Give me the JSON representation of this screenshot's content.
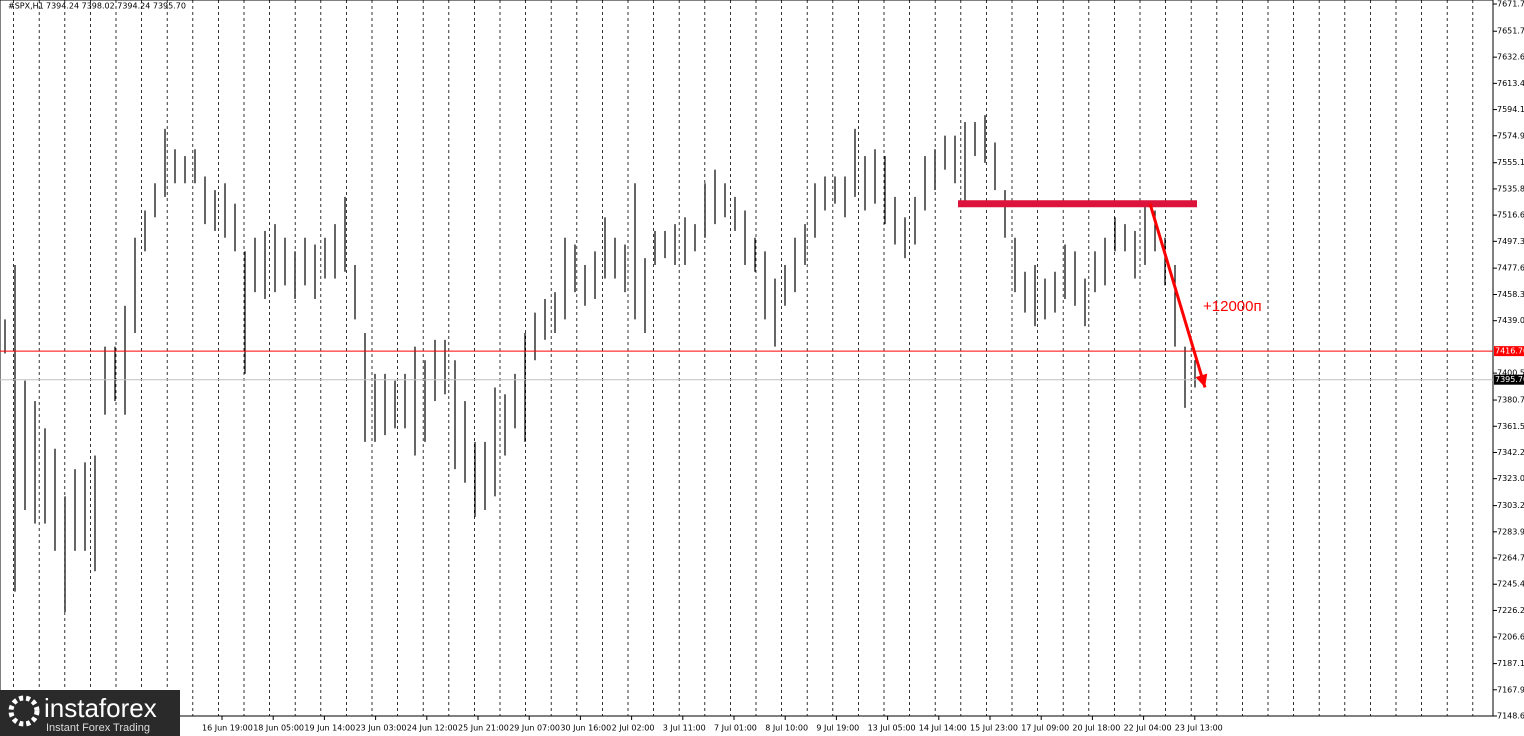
{
  "chart_data": {
    "type": "range-bar",
    "header": {
      "symbol": "#SPX,H1",
      "ohlc": "7394.24 7398.02 7394.24 7395.70"
    },
    "ylim": [
      7148.65,
      7671.7
    ],
    "yticks": [
      {
        "value": 7148.65,
        "label": "7148.65"
      },
      {
        "value": 7167.9,
        "label": "7167.90"
      },
      {
        "value": 7187.15,
        "label": "7187.15"
      },
      {
        "value": 7206.65,
        "label": "7206.65"
      },
      {
        "value": 7226.2,
        "label": "7226.20"
      },
      {
        "value": 7245.45,
        "label": "7245.45"
      },
      {
        "value": 7264.7,
        "label": "7264.70"
      },
      {
        "value": 7283.95,
        "label": "7283.95"
      },
      {
        "value": 7303.2,
        "label": "7303.20"
      },
      {
        "value": 7323,
        "label": "7323.00"
      },
      {
        "value": 7342.25,
        "label": "7342.25"
      },
      {
        "value": 7361.5,
        "label": "7361.50"
      },
      {
        "value": 7380.75,
        "label": "7380.75"
      },
      {
        "value": 7400.55,
        "label": "7400.55"
      },
      {
        "value": 7439.05,
        "label": "7439.05"
      },
      {
        "value": 7458.3,
        "label": "7458.30"
      },
      {
        "value": 7477.65,
        "label": "7477.65"
      },
      {
        "value": 7497.35,
        "label": "7497.35"
      },
      {
        "value": 7516.6,
        "label": "7516.60"
      },
      {
        "value": 7535.85,
        "label": "7535.85"
      },
      {
        "value": 7555.1,
        "label": "7555.10"
      },
      {
        "value": 7574.9,
        "label": "7574.90"
      },
      {
        "value": 7594.15,
        "label": "7594.15"
      },
      {
        "value": 7613.4,
        "label": "7613.40"
      },
      {
        "value": 7632.65,
        "label": "7632.65"
      },
      {
        "value": 7651.7,
        "label": "7651.70"
      },
      {
        "value": 7671.7,
        "label": "7671.70"
      }
    ],
    "xtick_labels": [
      "16 Jun 19:00",
      "18 Jun 05:00",
      "19 Jun 14:00",
      "23 Jun 03:00",
      "24 Jun 12:00",
      "25 Jun 21:00",
      "29 Jun 07:00",
      "30 Jun 16:00",
      "2 Jul 02:00",
      "3 Jul 11:00",
      "7 Jul 01:00",
      "8 Jul 10:00",
      "9 Jul 19:00",
      "13 Jul 05:00",
      "14 Jul 14:00",
      "15 Jul 23:00",
      "17 Jul 09:00",
      "20 Jul 18:00",
      "22 Jul 04:00",
      "23 Jul 13:00"
    ],
    "series": [
      {
        "color": "#000000",
        "high": [
          7440,
          7480,
          7395,
          7380,
          7360,
          7345,
          7310,
          7330,
          7335,
          7340,
          7420,
          7420,
          7450,
          7500,
          7520,
          7540,
          7580,
          7565,
          7560,
          7565,
          7545,
          7535,
          7540,
          7525,
          7490,
          7500,
          7505,
          7510,
          7500,
          7490,
          7500,
          7495,
          7500,
          7510,
          7530,
          7480,
          7430,
          7400,
          7400,
          7395,
          7400,
          7420,
          7410,
          7425,
          7425,
          7410,
          7380,
          7350,
          7350,
          7390,
          7385,
          7400,
          7430,
          7445,
          7455,
          7460,
          7500,
          7495,
          7480,
          7490,
          7515,
          7500,
          7495,
          7540,
          7485,
          7505,
          7505,
          7510,
          7515,
          7510,
          7540,
          7550,
          7540,
          7530,
          7520,
          7500,
          7490,
          7470,
          7480,
          7500,
          7510,
          7540,
          7545,
          7545,
          7545,
          7580,
          7560,
          7565,
          7560,
          7530,
          7515,
          7530,
          7560,
          7565,
          7575,
          7575,
          7585,
          7585,
          7590,
          7570,
          7535,
          7500,
          7475,
          7480,
          7470,
          7475,
          7495,
          7490,
          7470,
          7490,
          7500,
          7515,
          7510,
          7505,
          7525,
          7520,
          7500,
          7480,
          7420,
          7410
        ],
        "low": [
          7415,
          7240,
          7300,
          7290,
          7290,
          7270,
          7225,
          7270,
          7270,
          7255,
          7370,
          7380,
          7370,
          7430,
          7490,
          7515,
          7530,
          7540,
          7540,
          7540,
          7510,
          7505,
          7500,
          7490,
          7400,
          7460,
          7455,
          7460,
          7465,
          7455,
          7465,
          7455,
          7470,
          7470,
          7475,
          7440,
          7350,
          7350,
          7355,
          7360,
          7360,
          7340,
          7350,
          7380,
          7385,
          7330,
          7320,
          7295,
          7300,
          7310,
          7340,
          7360,
          7350,
          7410,
          7425,
          7430,
          7440,
          7460,
          7450,
          7455,
          7470,
          7470,
          7460,
          7440,
          7430,
          7480,
          7485,
          7480,
          7480,
          7490,
          7500,
          7510,
          7515,
          7505,
          7480,
          7475,
          7440,
          7420,
          7450,
          7460,
          7480,
          7500,
          7520,
          7525,
          7515,
          7530,
          7520,
          7525,
          7510,
          7495,
          7485,
          7495,
          7520,
          7535,
          7550,
          7540,
          7525,
          7560,
          7555,
          7535,
          7500,
          7460,
          7445,
          7435,
          7440,
          7445,
          7455,
          7450,
          7435,
          7460,
          7465,
          7490,
          7490,
          7470,
          7480,
          7490,
          7465,
          7420,
          7375,
          7390
        ]
      }
    ],
    "levels": [
      {
        "value": 7416.7,
        "label": "7416.70",
        "color": "#ff0000"
      },
      {
        "value": 7395.7,
        "label": "7395.70",
        "color": "#c0c0c0"
      }
    ],
    "zone": {
      "value": 7525,
      "color": "#dc143c"
    },
    "arrow": {
      "from": 7525,
      "to": 7390,
      "color": "#ff0000",
      "label": "+12000п"
    },
    "logo": {
      "name": "instaforex",
      "tagline": "Instant Forex Trading"
    }
  }
}
